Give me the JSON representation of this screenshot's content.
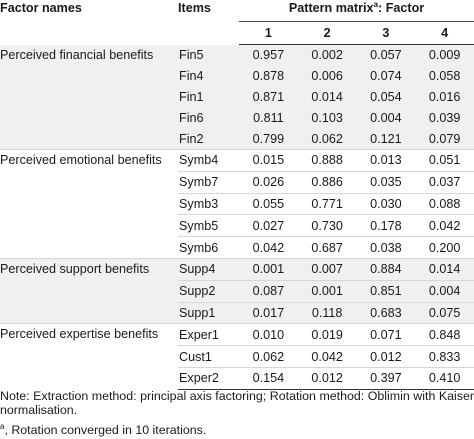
{
  "header": {
    "factor_names": "Factor names",
    "items": "Items",
    "pattern_matrix": "Pattern matrix",
    "pattern_sup": "a",
    "pattern_suffix": ": Factor",
    "factor_cols": [
      "1",
      "2",
      "3",
      "4"
    ]
  },
  "groups": [
    {
      "name": "Perceived financial benefits",
      "rows": [
        {
          "item": "Fin5",
          "values": [
            "0.957",
            "0.002",
            "0.057",
            "0.009"
          ]
        },
        {
          "item": "Fin4",
          "values": [
            "0.878",
            "0.006",
            "0.074",
            "0.058"
          ]
        },
        {
          "item": "Fin1",
          "values": [
            "0.871",
            "0.014",
            "0.054",
            "0.016"
          ]
        },
        {
          "item": "Fin6",
          "values": [
            "0.811",
            "0.103",
            "0.004",
            "0.039"
          ]
        },
        {
          "item": "Fin2",
          "values": [
            "0.799",
            "0.062",
            "0.121",
            "0.079"
          ]
        }
      ]
    },
    {
      "name": "Perceived emotional benefits",
      "rows": [
        {
          "item": "Symb4",
          "values": [
            "0.015",
            "0.888",
            "0.013",
            "0.051"
          ]
        },
        {
          "item": "Symb7",
          "values": [
            "0.026",
            "0.886",
            "0.035",
            "0.037"
          ]
        },
        {
          "item": "Symb3",
          "values": [
            "0.055",
            "0.771",
            "0.030",
            "0.088"
          ]
        },
        {
          "item": "Symb5",
          "values": [
            "0.027",
            "0.730",
            "0.178",
            "0.042"
          ]
        },
        {
          "item": "Symb6",
          "values": [
            "0.042",
            "0.687",
            "0.038",
            "0.200"
          ]
        }
      ]
    },
    {
      "name": "Perceived support benefits",
      "rows": [
        {
          "item": "Supp4",
          "values": [
            "0.001",
            "0.007",
            "0.884",
            "0.014"
          ]
        },
        {
          "item": "Supp2",
          "values": [
            "0.087",
            "0.001",
            "0.851",
            "0.004"
          ]
        },
        {
          "item": "Supp1",
          "values": [
            "0.017",
            "0.118",
            "0.683",
            "0.075"
          ]
        }
      ]
    },
    {
      "name": "Perceived expertise benefits",
      "rows": [
        {
          "item": "Exper1",
          "values": [
            "0.010",
            "0.019",
            "0.071",
            "0.848"
          ]
        },
        {
          "item": "Cust1",
          "values": [
            "0.062",
            "0.042",
            "0.012",
            "0.833"
          ]
        },
        {
          "item": "Exper2",
          "values": [
            "0.154",
            "0.012",
            "0.397",
            "0.410"
          ]
        }
      ]
    }
  ],
  "notes": {
    "note1": "Note: Extraction method: principal axis factoring; Rotation method: Oblimin with Kaiser normalisation.",
    "note2_sup": "a",
    "note2": ", Rotation converged in 10 iterations."
  }
}
